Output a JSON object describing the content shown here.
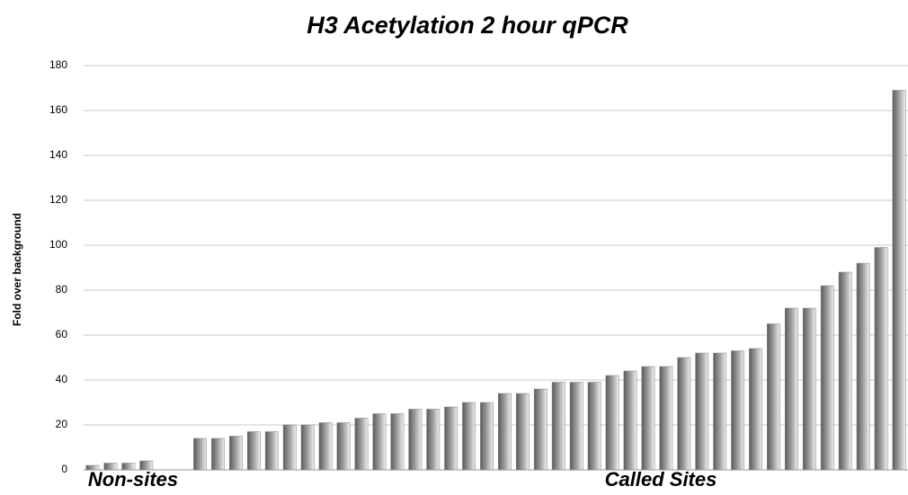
{
  "chart_data": {
    "type": "bar",
    "title": "H3 Acetylation 2 hour qPCR",
    "y_label": "Fold over background",
    "groups": [
      {
        "name": "Non-sites",
        "values": [
          2,
          3,
          3,
          4
        ]
      },
      {
        "name": "Called Sites",
        "values": [
          14,
          14,
          15,
          17,
          17,
          20,
          20,
          21,
          21,
          23,
          25,
          25,
          27,
          27,
          28,
          30,
          30,
          34,
          34,
          36,
          39,
          39,
          39,
          42,
          44,
          46,
          46,
          50,
          52,
          52,
          53,
          54,
          65,
          72,
          72,
          82,
          88,
          92,
          99,
          169
        ]
      }
    ],
    "ylim": [
      0,
      180
    ],
    "yticks": [
      0,
      20,
      40,
      60,
      80,
      100,
      120,
      140,
      160,
      180
    ],
    "grid": true,
    "color": "#808080"
  }
}
